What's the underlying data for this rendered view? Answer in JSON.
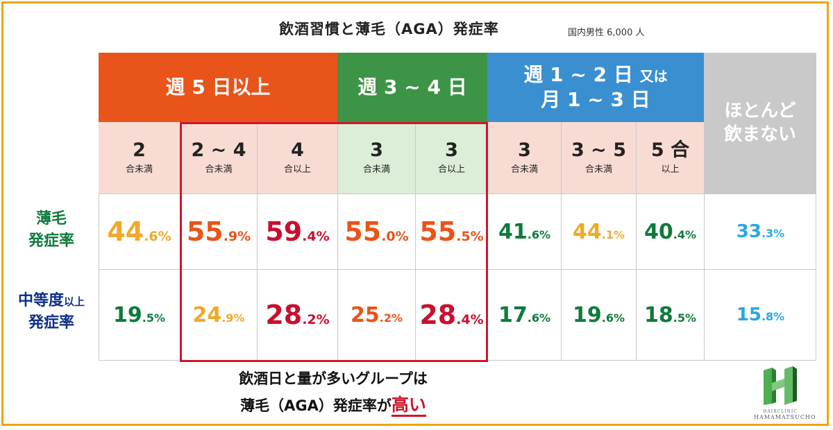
{
  "title": "飲酒習慣と薄毛（AGA）発症率",
  "subtitle": "国内男性 6,000 人",
  "groups": [
    {
      "label": "週 5 日以上",
      "color": "#e9541a"
    },
    {
      "label": "週 3 ~ 4 日",
      "color": "#3d9346"
    },
    {
      "line1": "週 1 ~ 2 日",
      "line1_small": "又は",
      "line2": "月 1 ~ 3 日",
      "color": "#3a8fd1"
    },
    {
      "line1": "ほとんど",
      "line2": "飲まない",
      "color": "#c9c9c9"
    }
  ],
  "columns": [
    {
      "num": "2",
      "unit": "合未満"
    },
    {
      "num": "2 ~ 4",
      "unit": "合未満"
    },
    {
      "num": "4",
      "unit": "合以上"
    },
    {
      "num": "3",
      "unit": "合未満"
    },
    {
      "num": "3",
      "unit": "合以上"
    },
    {
      "num": "3",
      "unit": "合未満"
    },
    {
      "num": "3 ~ 5",
      "unit": "合未満"
    },
    {
      "num": "5 合",
      "unit": "以上"
    }
  ],
  "rows": [
    {
      "label_line1": "薄毛",
      "label_line2": "発症率",
      "values": [
        {
          "int": "44",
          "dec": ".6%",
          "color": "#f0a92a"
        },
        {
          "int": "55",
          "dec": ".9%",
          "color": "#e9541a"
        },
        {
          "int": "59",
          "dec": ".4%",
          "color": "#c8102e"
        },
        {
          "int": "55",
          "dec": ".0%",
          "color": "#e9541a"
        },
        {
          "int": "55",
          "dec": ".5%",
          "color": "#e9541a"
        },
        {
          "int": "41",
          "dec": ".6%",
          "color": "#0e7a3c"
        },
        {
          "int": "44",
          "dec": ".1%",
          "color": "#f0a92a"
        },
        {
          "int": "40",
          "dec": ".4%",
          "color": "#0e7a3c"
        },
        {
          "int": "33",
          "dec": ".3%",
          "color": "#2aa7df"
        }
      ]
    },
    {
      "label_line1": "中等度",
      "label_line1_small": "以上",
      "label_line2": "発症率",
      "values": [
        {
          "int": "19",
          "dec": ".5%",
          "color": "#0e7a3c"
        },
        {
          "int": "24",
          "dec": ".9%",
          "color": "#f0a92a"
        },
        {
          "int": "28",
          "dec": ".2%",
          "color": "#c8102e"
        },
        {
          "int": "25",
          "dec": ".2%",
          "color": "#e9541a"
        },
        {
          "int": "28",
          "dec": ".4%",
          "color": "#c8102e"
        },
        {
          "int": "17",
          "dec": ".6%",
          "color": "#0e7a3c"
        },
        {
          "int": "19",
          "dec": ".6%",
          "color": "#0e7a3c"
        },
        {
          "int": "18",
          "dec": ".5%",
          "color": "#0e7a3c"
        },
        {
          "int": "15",
          "dec": ".8%",
          "color": "#2aa7df"
        }
      ]
    }
  ],
  "note": {
    "line1": "飲酒日と量が多いグループは",
    "line2": "薄毛（AGA）発症率が",
    "highlight": "高い"
  },
  "logo": {
    "line1": "HAIRCLINIC",
    "line2": "HAMAMATSUCHO",
    "icon": "h-logo-icon"
  },
  "colors": {
    "subheader_orange": "#f8dcd4",
    "subheader_green": "#dcedd8",
    "frame": "#f0a500",
    "highlight_box": "#d2142a"
  }
}
